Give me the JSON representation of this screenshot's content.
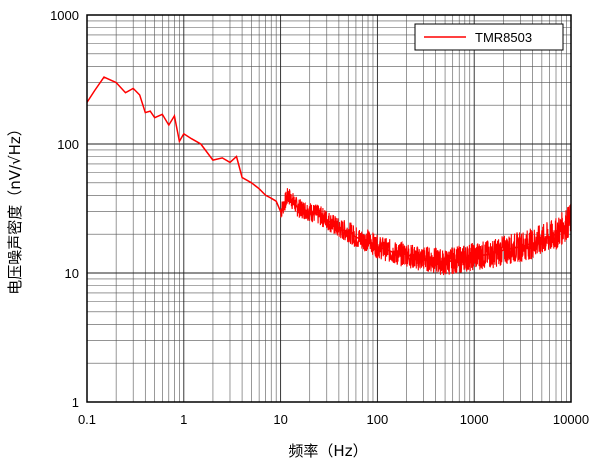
{
  "chart_data": {
    "type": "line",
    "xlabel": "频率（Hz）",
    "ylabel": "电压噪声密度（nV/√Hz）",
    "x_scale": "log",
    "y_scale": "log",
    "xlim": [
      0.1,
      10000
    ],
    "ylim": [
      1,
      1000
    ],
    "x_ticks": [
      0.1,
      1,
      10,
      100,
      1000,
      10000
    ],
    "x_tick_labels": [
      "0.1",
      "1",
      "10",
      "100",
      "1000",
      "10000"
    ],
    "y_ticks": [
      1,
      10,
      100,
      1000
    ],
    "y_tick_labels": [
      "1",
      "10",
      "100",
      "1000"
    ],
    "grid": true,
    "legend_position": "top-right",
    "series": [
      {
        "name": "TMR8503",
        "color": "#ff0000",
        "x": [
          0.1,
          0.12,
          0.15,
          0.18,
          0.2,
          0.25,
          0.3,
          0.35,
          0.4,
          0.45,
          0.5,
          0.6,
          0.7,
          0.8,
          0.9,
          1.0,
          1.2,
          1.5,
          2.0,
          2.5,
          3.0,
          3.5,
          4.0,
          5.0,
          6.0,
          7.0,
          8.0,
          9.0,
          10,
          12,
          15,
          20,
          25,
          30,
          40,
          50,
          60,
          70,
          80,
          100,
          130,
          160,
          200,
          250,
          300,
          400,
          500,
          600,
          800,
          1000,
          1500,
          2000,
          3000,
          4000,
          5000,
          6000,
          7000,
          8000,
          9000,
          10000
        ],
        "y": [
          210,
          260,
          330,
          310,
          300,
          250,
          270,
          240,
          175,
          180,
          160,
          170,
          140,
          165,
          105,
          120,
          110,
          100,
          75,
          78,
          72,
          80,
          55,
          50,
          45,
          40,
          38,
          36,
          30,
          40,
          32,
          30,
          28,
          26,
          22,
          21,
          19,
          18,
          18,
          16,
          15,
          14,
          14,
          13,
          13,
          12.5,
          12,
          12.5,
          13,
          13.5,
          14,
          15,
          16,
          17,
          18,
          19,
          20,
          22,
          24,
          26
        ]
      }
    ]
  }
}
